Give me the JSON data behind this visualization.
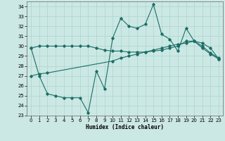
{
  "xlabel": "Humidex (Indice chaleur)",
  "background_color": "#cce8e4",
  "grid_color": "#aad4ce",
  "line_color": "#1a6e65",
  "xlim": [
    -0.5,
    23.5
  ],
  "ylim": [
    23,
    34.5
  ],
  "yticks": [
    23,
    24,
    25,
    26,
    27,
    28,
    29,
    30,
    31,
    32,
    33,
    34
  ],
  "xticks": [
    0,
    1,
    2,
    3,
    4,
    5,
    6,
    7,
    8,
    9,
    10,
    11,
    12,
    13,
    14,
    15,
    16,
    17,
    18,
    19,
    20,
    21,
    22,
    23
  ],
  "series1_x": [
    0,
    1,
    2,
    3,
    4,
    5,
    6,
    7,
    8,
    9,
    10,
    11,
    12,
    13,
    14,
    15,
    16,
    17,
    18,
    19,
    20,
    21,
    22,
    23
  ],
  "series1_y": [
    29.8,
    30.0,
    30.0,
    30.0,
    30.0,
    30.0,
    30.0,
    30.0,
    29.8,
    29.6,
    29.5,
    29.5,
    29.4,
    29.4,
    29.4,
    29.5,
    29.6,
    29.8,
    30.0,
    30.5,
    30.5,
    30.0,
    29.3,
    28.8
  ],
  "series2_x": [
    0,
    1,
    2,
    10,
    11,
    12,
    13,
    14,
    15,
    16,
    17,
    18,
    19,
    20,
    21,
    22,
    23
  ],
  "series2_y": [
    27.0,
    27.2,
    27.3,
    28.5,
    28.8,
    29.0,
    29.2,
    29.4,
    29.6,
    29.8,
    30.0,
    30.2,
    30.3,
    30.5,
    30.3,
    29.8,
    28.7
  ],
  "series3_x": [
    0,
    1,
    2,
    3,
    4,
    5,
    6,
    7,
    8,
    9,
    10,
    11,
    12,
    13,
    14,
    15,
    16,
    17,
    18,
    19,
    20,
    21,
    22,
    23
  ],
  "series3_y": [
    29.8,
    27.0,
    25.2,
    25.0,
    24.8,
    24.8,
    24.8,
    23.3,
    27.5,
    25.7,
    30.8,
    32.8,
    32.0,
    31.8,
    32.2,
    34.2,
    31.2,
    30.7,
    29.5,
    31.8,
    30.5,
    29.8,
    29.2,
    28.7
  ]
}
